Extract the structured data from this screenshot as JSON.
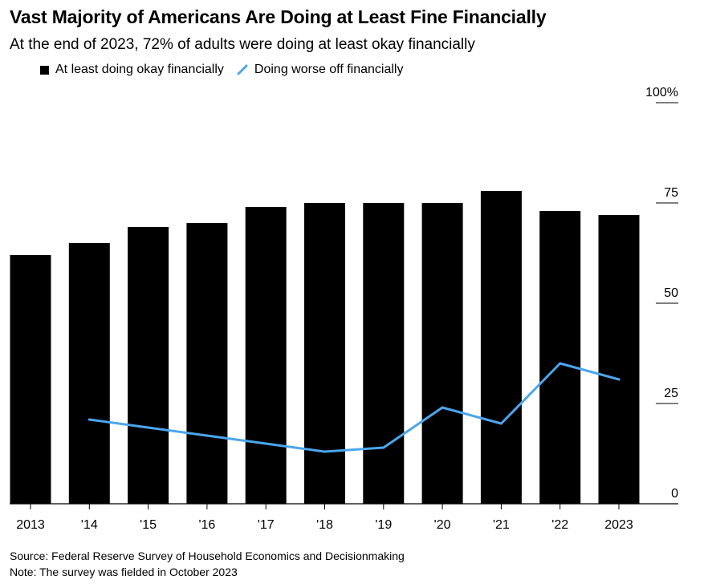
{
  "title": "Vast Majority of Americans Are Doing at Least Fine Financially",
  "subtitle": "At the end of 2023, 72% of adults were doing at least okay financially",
  "legend": {
    "bar_label": "At least doing okay financially",
    "line_label": "Doing worse off financially"
  },
  "source": "Source: Federal Reserve Survey of Household Economics and Decisionmaking",
  "note": "Note: The survey was fielded in October 2023",
  "colors": {
    "bar": "#000000",
    "line": "#4aa6ee",
    "axis": "#000000"
  },
  "chart_data": {
    "type": "bar",
    "categories": [
      "2013",
      "'14",
      "'15",
      "'16",
      "'17",
      "'18",
      "'19",
      "'20",
      "'21",
      "'22",
      "2023"
    ],
    "series": [
      {
        "name": "At least doing okay financially",
        "type": "bar",
        "values": [
          62,
          65,
          69,
          70,
          74,
          75,
          75,
          75,
          78,
          73,
          72
        ]
      },
      {
        "name": "Doing worse off financially",
        "type": "line",
        "values": [
          null,
          21,
          19,
          17,
          15,
          13,
          14,
          24,
          20,
          35,
          31
        ]
      }
    ],
    "ylim": [
      0,
      100
    ],
    "yticks": [
      0,
      25,
      50,
      75,
      100
    ],
    "ytick_labels": [
      "0",
      "25",
      "50",
      "75",
      "100%"
    ],
    "y_axis_side": "right",
    "grid": false,
    "legend_position": "top-left"
  }
}
